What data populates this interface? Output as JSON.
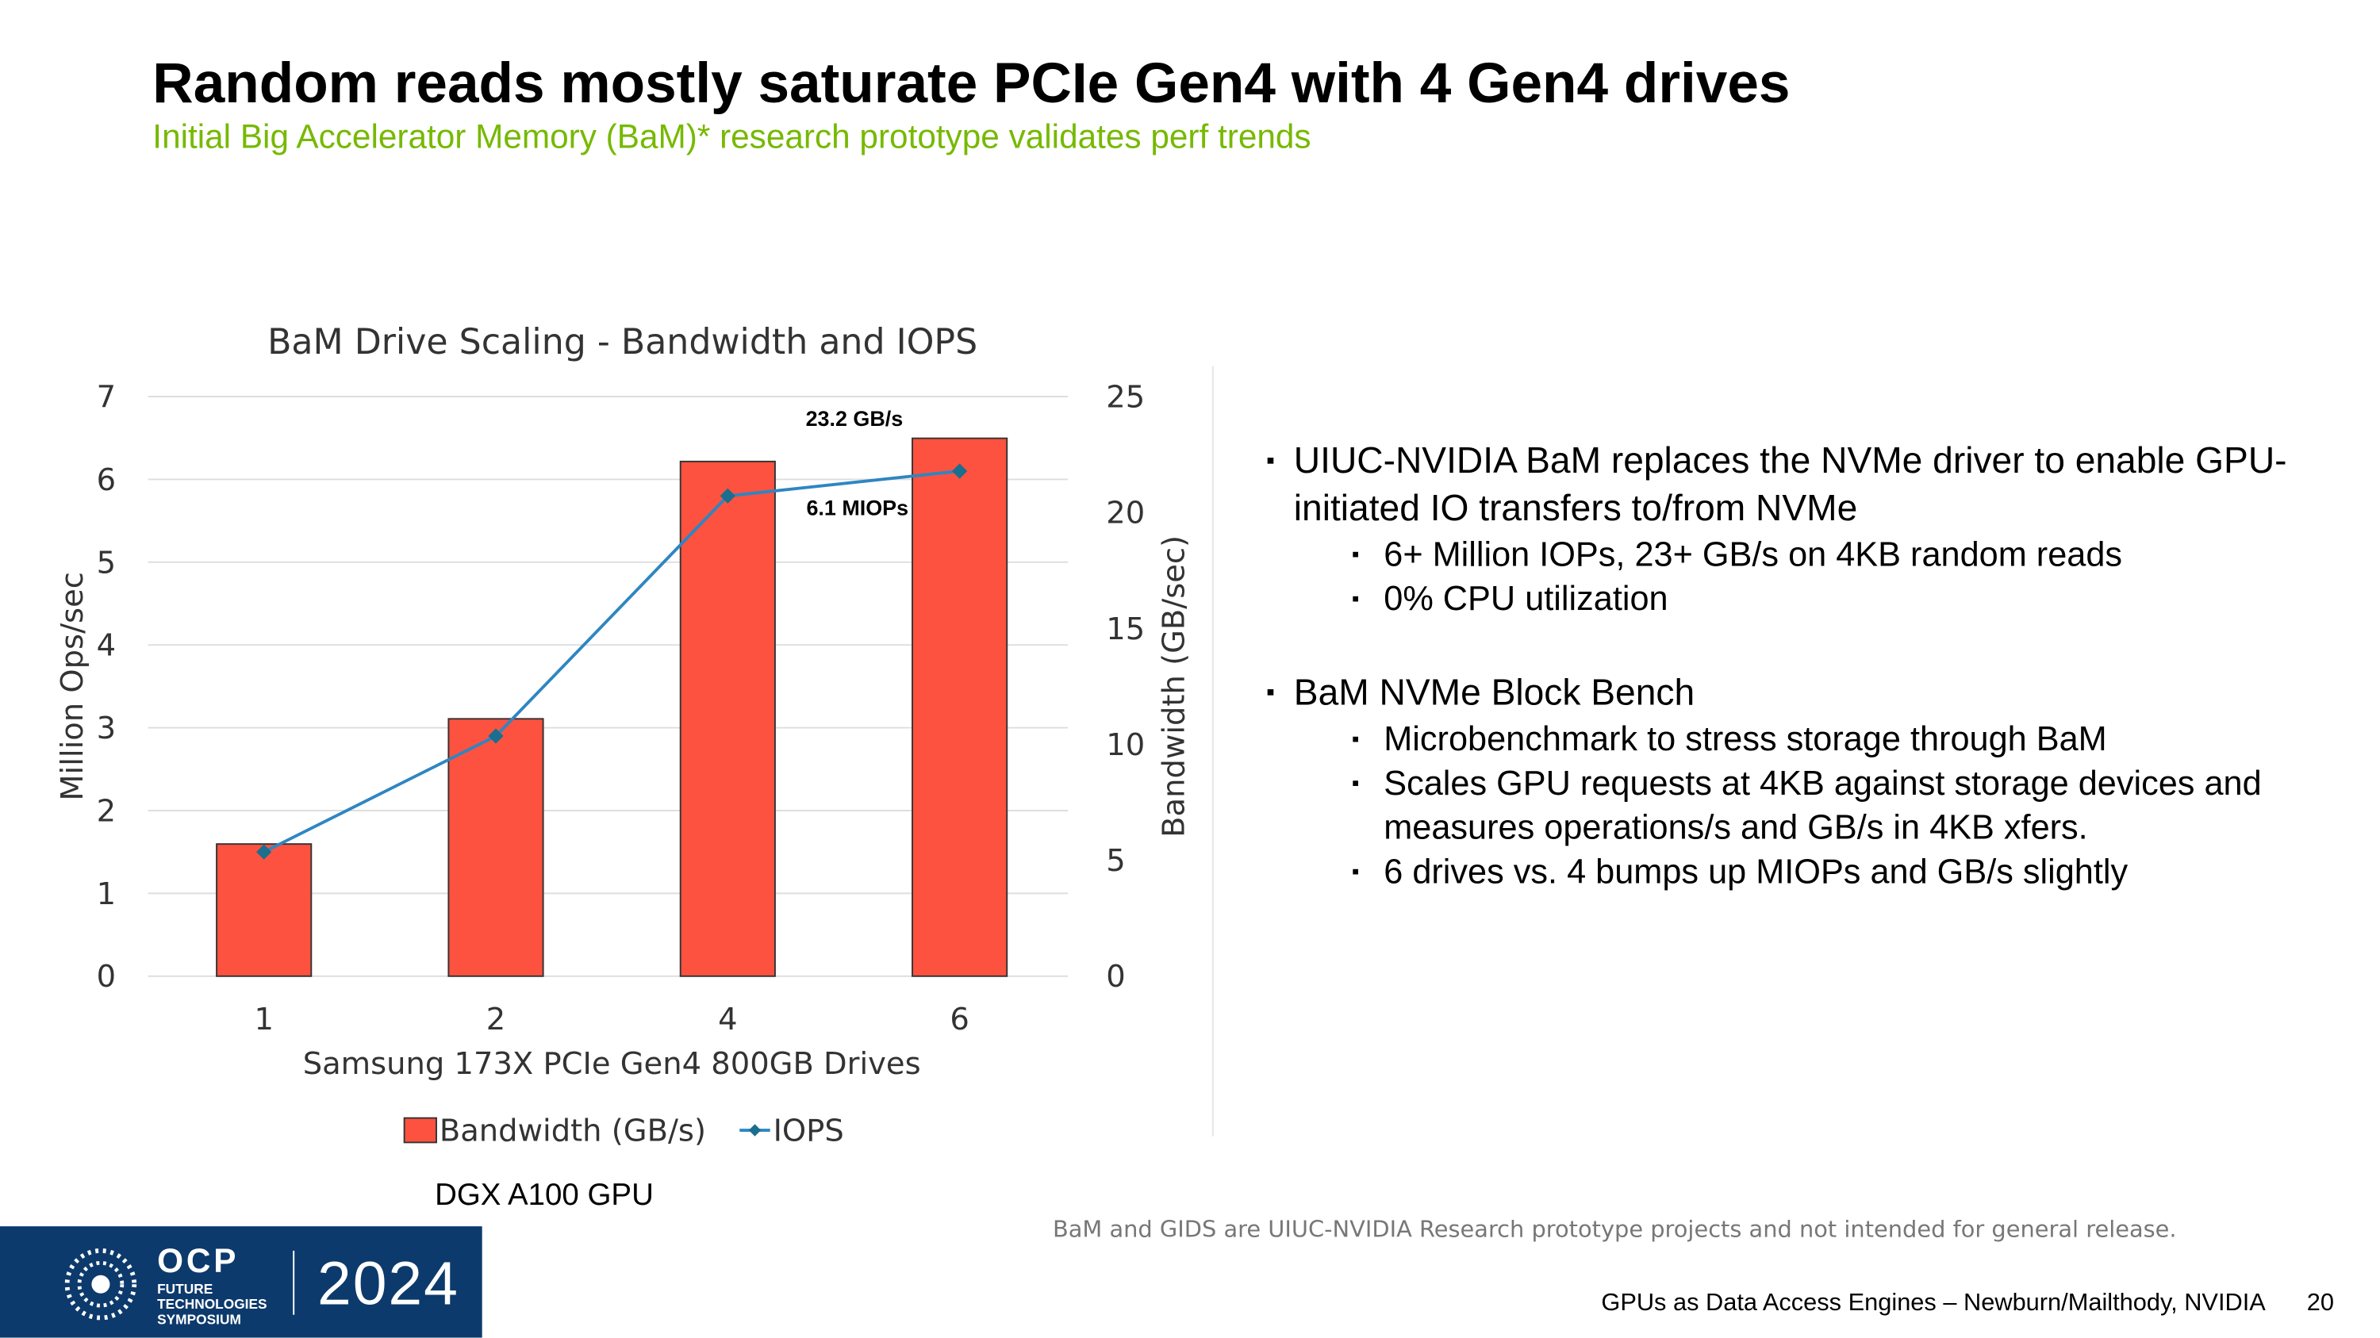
{
  "title": "Random reads mostly saturate PCIe Gen4 with 4 Gen4 drives",
  "subtitle": "Initial Big Accelerator Memory (BaM)* research prototype validates perf trends",
  "chart_data": {
    "type": "bar",
    "title": "BaM Drive Scaling - Bandwidth and IOPS",
    "categories": [
      "1",
      "2",
      "4",
      "6"
    ],
    "x_label": "Samsung 173X PCIe Gen4  800GB Drives",
    "y_label": "Million Ops/sec",
    "y2_label": "Bandwidth (GB/sec)",
    "series": [
      {
        "name": "Bandwidth (GB/s)",
        "type": "bar",
        "axis": "y2",
        "color": "#fd5240",
        "values": [
          5.7,
          11.1,
          22.2,
          23.2
        ],
        "value_labels": [
          null,
          null,
          null,
          "23.2 GB/s"
        ]
      },
      {
        "name": "IOPS",
        "type": "line",
        "color": "#2e86c1",
        "values": [
          1.5,
          2.9,
          5.8,
          6.1
        ],
        "value_labels": [
          null,
          null,
          null,
          "6.1 MIOPs"
        ]
      }
    ],
    "ylim": [
      0,
      7
    ],
    "yticks": [
      0,
      1,
      2,
      3,
      4,
      5,
      6,
      7
    ],
    "y2lim": [
      0,
      25
    ],
    "y2ticks": [
      0,
      5,
      10,
      15,
      20,
      25
    ],
    "grid": true,
    "legend": "bottom"
  },
  "chart_caption": "DGX A100 GPU",
  "bullets": [
    {
      "text": "UIUC-NVIDIA BaM replaces the NVMe driver to enable GPU-initiated IO transfers to/from NVMe",
      "items": [
        "6+ Million IOPs, 23+ GB/s on 4KB random reads",
        "0% CPU utilization"
      ]
    },
    {
      "text": "BaM NVMe Block Bench",
      "items": [
        "Microbenchmark to stress storage through BaM",
        "Scales GPU requests at 4KB against storage devices and measures operations/s and GB/s in 4KB xfers.",
        "6 drives vs. 4 bumps up MIOPs and GB/s slightly"
      ]
    }
  ],
  "disclaimer": "BaM and GIDS are UIUC-NVIDIA Research prototype projects and not intended for general release.",
  "footer": {
    "text": "GPUs as Data Access Engines – Newburn/Mailthody, NVIDIA",
    "page": 20
  },
  "logo": {
    "name": "OCP",
    "subtitle": "FUTURE TECHNOLOGIES SYMPOSIUM",
    "year": "2024"
  }
}
